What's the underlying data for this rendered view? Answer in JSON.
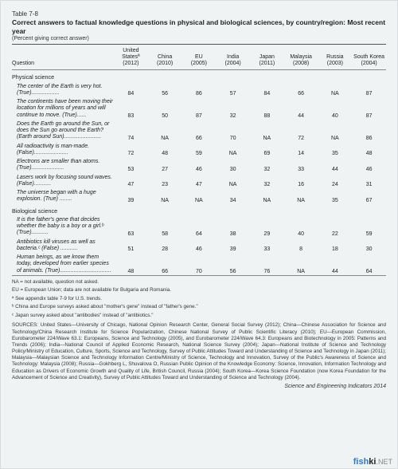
{
  "table_label": "Table 7-8",
  "title": "Correct answers to factual knowledge questions in physical and biological sciences, by country/region: Most recent year",
  "subtitle": "(Percent giving correct answer)",
  "columns": [
    {
      "head1": "United",
      "head2": "Statesª",
      "head3": "(2012)"
    },
    {
      "head1": "China",
      "head2": "",
      "head3": "(2010)"
    },
    {
      "head1": "EU",
      "head2": "",
      "head3": "(2005)"
    },
    {
      "head1": "India",
      "head2": "",
      "head3": "(2004)"
    },
    {
      "head1": "Japan",
      "head2": "",
      "head3": "(2011)"
    },
    {
      "head1": "Malaysia",
      "head2": "",
      "head3": "(2008)"
    },
    {
      "head1": "Russia",
      "head2": "",
      "head3": "(2003)"
    },
    {
      "head1": "South Korea",
      "head2": "",
      "head3": "(2004)"
    }
  ],
  "question_header": "Question",
  "sections": [
    {
      "name": "Physical science",
      "rows": [
        {
          "q": "The center of the Earth is very hot. (True)..................",
          "v": [
            "84",
            "56",
            "86",
            "57",
            "84",
            "66",
            "NA",
            "87"
          ]
        },
        {
          "q": "The continents have been moving their location for millions of years and will continue to move. (True)......",
          "v": [
            "83",
            "50",
            "87",
            "32",
            "88",
            "44",
            "40",
            "87"
          ]
        },
        {
          "q": "Does the Earth go around the Sun, or does the Sun go around the Earth? (Earth around Sun)........................",
          "v": [
            "74",
            "NA",
            "66",
            "70",
            "NA",
            "72",
            "NA",
            "86"
          ]
        },
        {
          "q": "All radioactivity is man-made. (False)......................",
          "v": [
            "72",
            "48",
            "59",
            "NA",
            "69",
            "14",
            "35",
            "48"
          ]
        },
        {
          "q": "Electrons are smaller than atoms. (True).....................",
          "v": [
            "53",
            "27",
            "46",
            "30",
            "32",
            "33",
            "44",
            "46"
          ]
        },
        {
          "q": "Lasers work by focusing sound waves. (False)...........",
          "v": [
            "47",
            "23",
            "47",
            "NA",
            "32",
            "16",
            "24",
            "31"
          ]
        },
        {
          "q": "The universe began with a huge explosion. (True) ........",
          "v": [
            "39",
            "NA",
            "NA",
            "34",
            "NA",
            "NA",
            "35",
            "67"
          ]
        }
      ]
    },
    {
      "name": "Biological science",
      "rows": [
        {
          "q": "It is the father's gene that decides whether the baby is a boy or a girl.ᵇ (True)...........",
          "v": [
            "63",
            "58",
            "64",
            "38",
            "29",
            "40",
            "22",
            "59"
          ]
        },
        {
          "q": "Antibiotics kill viruses as well as bacteria.ᶜ (False) ...........",
          "v": [
            "51",
            "28",
            "46",
            "39",
            "33",
            "8",
            "18",
            "30"
          ]
        },
        {
          "q": "Human beings, as we know them today, developed from earlier species of animals. (True).................................",
          "v": [
            "48",
            "66",
            "70",
            "56",
            "76",
            "NA",
            "44",
            "64"
          ]
        }
      ]
    }
  ],
  "notes": {
    "na": "NA = not available, question not asked.",
    "eu": "EU = European Union; data are not available for Bulgaria and Romania.",
    "a": "ª See appendix table 7-9 for U.S. trends.",
    "b": "ᵇ China and Europe surveys asked about \"mother's gene\" instead of \"father's gene.\"",
    "c": "ᶜ Japan survey asked about \"antibodies\" instead of \"antibiotics.\""
  },
  "sources": "SOURCES: United States—University of Chicago, National Opinion Research Center, General Social Survey (2012); China—Chinese Association for Science and Technology/China Research Institute for Science Popularization, Chinese National Survey of Public Scientific Literacy (2010); EU—European Commission, Eurobarometer 224/Wave 63.1: Europeans, Science and Technology (2005), and Eurobarometer 224/Wave 64.3: Europeans and Biotechnology in 2005: Patterns and Trends (2006); India—National Council of Applied Economic Research, National Science Survey (2004); Japan—National Institute of Science and Technology Policy/Ministry of Education, Culture, Sports, Science and Technology, Survey of Public Attitudes Toward and Understanding of Science and Technology in Japan (2011); Malaysia—Malaysian Science and Technology Information Centre/Ministry of Science, Technology and Innovation, Survey of the Public's Awareness of Science and Technology: Malaysia (2008); Russia—Gokhberg L, Shuvalova O, Russian Public Opinion of the Knowledge Economy: Science, Innovation, Information Technology and Education as Drivers of Economic Growth and Quality of Life, British Council, Russia (2004); South Korea—Korea Science Foundation (now Korea Foundation for the Advancement of Science and Creativity), Survey of Public Attitudes Toward and Understanding of Science and Technology (2004).",
  "indicator": "Science and Engineering Indicators 2014",
  "watermark": {
    "p1": "fish",
    "p2": "ki",
    ".": "."
  }
}
